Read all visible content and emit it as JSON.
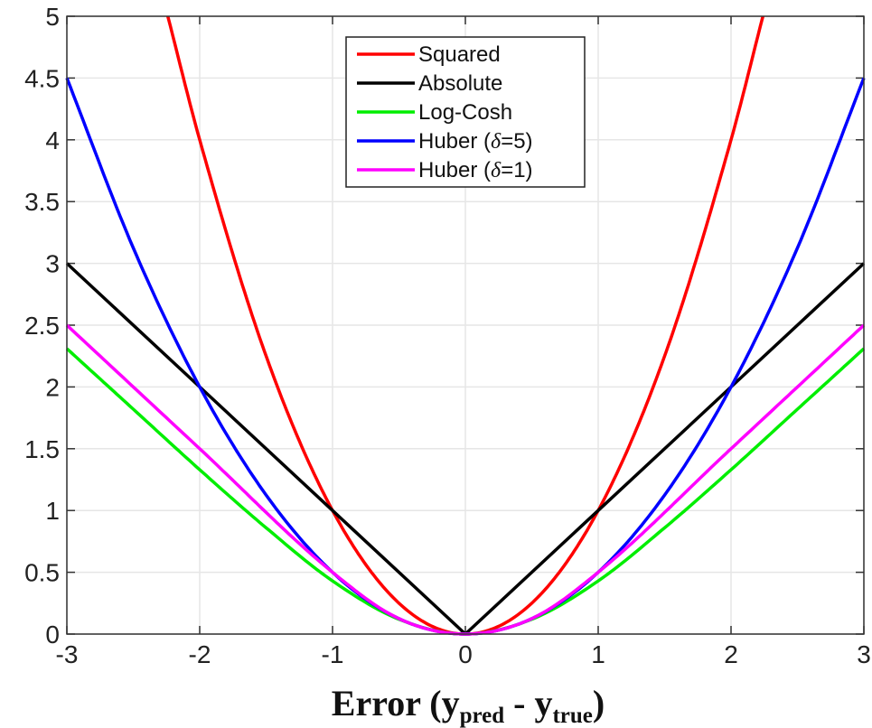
{
  "chart_data": {
    "type": "line",
    "xlim": [
      -3,
      3
    ],
    "ylim": [
      0,
      5
    ],
    "grid": true,
    "legend_position": "top-center",
    "x_ticks": [
      "-3",
      "-2",
      "-1",
      "0",
      "1",
      "2",
      "3"
    ],
    "y_ticks": [
      "0",
      "0.5",
      "1",
      "1.5",
      "2",
      "2.5",
      "3",
      "3.5",
      "4",
      "4.5",
      "5"
    ],
    "x_label": {
      "main": "Error (y",
      "sub1": "pred",
      "mid": " - y",
      "sub2": "true",
      "end": ")"
    },
    "series": [
      {
        "name": "Squared",
        "color": "#ff0000",
        "x": [
          -2.24,
          -2,
          -1.5,
          -1,
          -0.5,
          0,
          0.5,
          1,
          1.5,
          2,
          2.24
        ],
        "y": [
          5.0,
          4.0,
          2.25,
          1.0,
          0.25,
          0,
          0.25,
          1.0,
          2.25,
          4.0,
          5.0
        ]
      },
      {
        "name": "Absolute",
        "color": "#000000",
        "x": [
          -3,
          -2,
          -1,
          0,
          1,
          2,
          3
        ],
        "y": [
          3,
          2,
          1,
          0,
          1,
          2,
          3
        ]
      },
      {
        "name": "Log-Cosh",
        "color": "#00ee00",
        "x": [
          -3,
          -2.5,
          -2,
          -1.5,
          -1,
          -0.5,
          0,
          0.5,
          1,
          1.5,
          2,
          2.5,
          3
        ],
        "y": [
          2.31,
          1.82,
          1.33,
          0.86,
          0.43,
          0.12,
          0,
          0.12,
          0.43,
          0.86,
          1.33,
          1.82,
          2.31
        ]
      },
      {
        "name": "Huber (δ=5)",
        "legend_prefix": "Huber (",
        "legend_delta": "δ",
        "legend_suffix": "=5)",
        "color": "#0000ff",
        "x": [
          -3,
          -2.5,
          -2,
          -1.5,
          -1,
          -0.5,
          0,
          0.5,
          1,
          1.5,
          2,
          2.5,
          3
        ],
        "y": [
          4.5,
          3.125,
          2.0,
          1.125,
          0.5,
          0.125,
          0,
          0.125,
          0.5,
          1.125,
          2.0,
          3.125,
          4.5
        ]
      },
      {
        "name": "Huber (δ=1)",
        "legend_prefix": "Huber (",
        "legend_delta": "δ",
        "legend_suffix": "=1)",
        "color": "#ff00ff",
        "x": [
          -3,
          -2,
          -1,
          -0.5,
          0,
          0.5,
          1,
          2,
          3
        ],
        "y": [
          2.5,
          1.5,
          0.5,
          0.125,
          0,
          0.125,
          0.5,
          1.5,
          2.5
        ]
      }
    ]
  }
}
